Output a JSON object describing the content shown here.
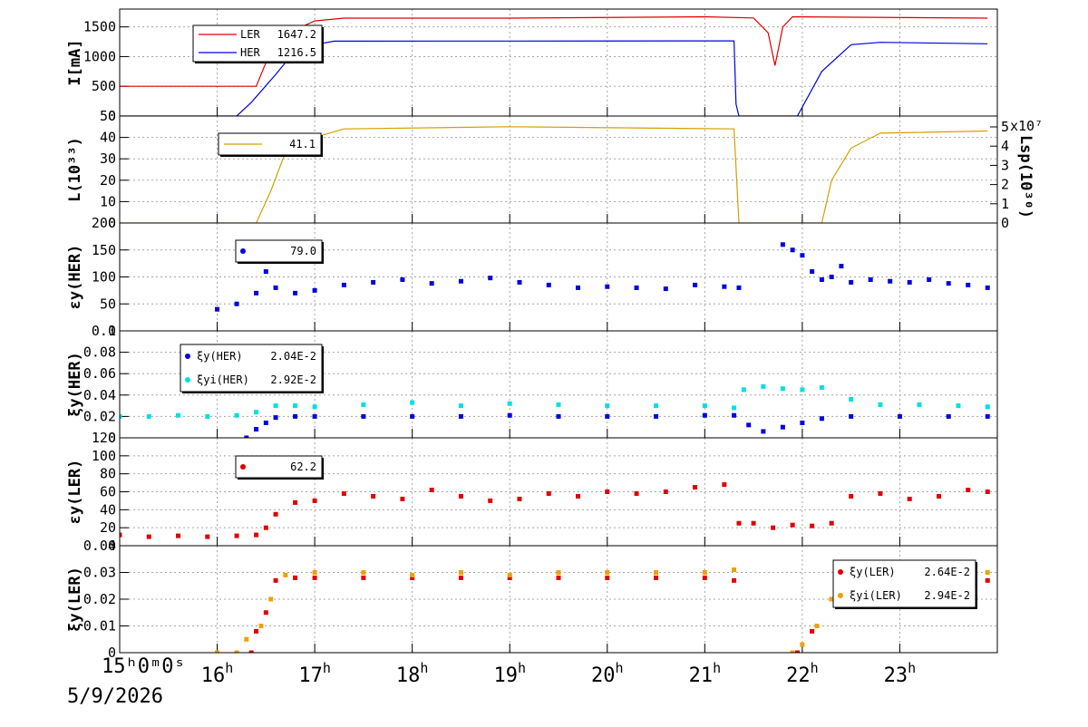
{
  "figure": {
    "time_label": "15ʰ0ᵐ0ˢ",
    "date_label": "5/9/2026"
  },
  "chart_data": [
    {
      "type": "line",
      "id": "current",
      "ylabel": "I[mA]",
      "ylim": [
        0,
        1800
      ],
      "yticks": [
        0,
        500,
        1000,
        1500
      ],
      "legend": [
        {
          "name": "LER",
          "value": "1647.2",
          "color": "#e00000"
        },
        {
          "name": "HER",
          "value": "1216.5",
          "color": "#0000e0"
        }
      ],
      "series": [
        {
          "name": "LER",
          "color": "#e00000",
          "x": [
            15.0,
            16.4,
            16.55,
            16.8,
            17.0,
            17.3,
            19.0,
            21.0,
            21.5,
            21.65,
            21.72,
            21.8,
            21.9,
            23.9
          ],
          "y": [
            500,
            500,
            1100,
            1450,
            1600,
            1647,
            1647,
            1670,
            1650,
            1400,
            850,
            1500,
            1670,
            1647
          ]
        },
        {
          "name": "HER",
          "color": "#0000e0",
          "x": [
            15.0,
            16.2,
            16.35,
            16.6,
            16.8,
            17.0,
            17.2,
            19.0,
            21.3,
            21.32,
            21.35,
            21.95,
            22.2,
            22.5,
            22.8,
            23.9
          ],
          "y": [
            0,
            0,
            230,
            700,
            1100,
            1200,
            1260,
            1262,
            1265,
            200,
            0,
            0,
            750,
            1200,
            1240,
            1216
          ]
        }
      ]
    },
    {
      "type": "line",
      "id": "luminosity",
      "ylabel": "L(10³³)",
      "y2label": "Lsp(10³⁰)",
      "ylim": [
        0,
        50
      ],
      "yticks": [
        0,
        10,
        20,
        30,
        40,
        50
      ],
      "y2ticks": [
        0,
        1,
        2,
        3,
        4,
        5
      ],
      "y2_exponent": "x10⁷",
      "legend": [
        {
          "name": "",
          "value": "41.1",
          "color": "#d4a000"
        }
      ],
      "series": [
        {
          "name": "L",
          "color": "#d4a000",
          "x": [
            15.0,
            16.4,
            16.55,
            16.7,
            17.0,
            17.3,
            19.0,
            21.3,
            21.35,
            22.2,
            22.3,
            22.5,
            22.8,
            23.9
          ],
          "y": [
            0,
            0,
            15,
            33,
            40,
            44,
            45,
            44,
            0,
            0,
            20,
            35,
            42,
            43
          ]
        }
      ]
    },
    {
      "type": "scatter",
      "id": "sigma-her",
      "ylabel": "εy(HER)",
      "ylim": [
        0,
        200
      ],
      "yticks": [
        0,
        50,
        100,
        150,
        200
      ],
      "legend": [
        {
          "name": "",
          "value": "79.0",
          "color": "#0000e0"
        }
      ],
      "series": [
        {
          "name": "HER",
          "color": "#0000e0",
          "x": [
            16.0,
            16.2,
            16.4,
            16.5,
            16.6,
            16.8,
            17.0,
            17.3,
            17.6,
            17.9,
            18.2,
            18.5,
            18.8,
            19.1,
            19.4,
            19.7,
            20.0,
            20.3,
            20.6,
            20.9,
            21.2,
            21.35,
            21.8,
            21.9,
            22.0,
            22.1,
            22.2,
            22.3,
            22.4,
            22.5,
            22.7,
            22.9,
            23.1,
            23.3,
            23.5,
            23.7,
            23.9
          ],
          "y": [
            40,
            50,
            70,
            110,
            80,
            70,
            75,
            85,
            90,
            95,
            88,
            92,
            98,
            90,
            85,
            80,
            82,
            80,
            78,
            85,
            82,
            80,
            160,
            150,
            140,
            110,
            95,
            100,
            120,
            90,
            95,
            92,
            90,
            95,
            88,
            85,
            80
          ]
        }
      ]
    },
    {
      "type": "scatter",
      "id": "xi-her",
      "ylabel": "ξy(HER)",
      "ylim": [
        0,
        0.1
      ],
      "yticks": [
        0,
        0.02,
        0.04,
        0.06,
        0.08,
        0.1
      ],
      "legend": [
        {
          "name": "ξy(HER)",
          "value": "2.04E-2",
          "color": "#0000e0"
        },
        {
          "name": "ξyi(HER)",
          "value": "2.92E-2",
          "color": "#00e0e0"
        }
      ],
      "series": [
        {
          "name": "ξy(HER)",
          "color": "#0000e0",
          "x": [
            16.3,
            16.4,
            16.5,
            16.6,
            16.8,
            17.0,
            17.5,
            18.0,
            18.5,
            19.0,
            19.5,
            20.0,
            20.5,
            21.0,
            21.3,
            21.45,
            21.6,
            21.8,
            22.0,
            22.2,
            22.5,
            23.0,
            23.5,
            23.9
          ],
          "y": [
            0.0,
            0.008,
            0.014,
            0.019,
            0.02,
            0.02,
            0.02,
            0.02,
            0.02,
            0.021,
            0.02,
            0.02,
            0.02,
            0.021,
            0.021,
            0.012,
            0.006,
            0.01,
            0.014,
            0.018,
            0.02,
            0.02,
            0.02,
            0.02
          ]
        },
        {
          "name": "ξyi(HER)",
          "color": "#00e0e0",
          "x": [
            15.0,
            15.3,
            15.6,
            15.9,
            16.2,
            16.4,
            16.6,
            16.8,
            17.0,
            17.5,
            18.0,
            18.5,
            19.0,
            19.5,
            20.0,
            20.5,
            21.0,
            21.3,
            21.4,
            21.6,
            21.8,
            22.0,
            22.2,
            22.5,
            22.8,
            23.2,
            23.6,
            23.9
          ],
          "y": [
            0.02,
            0.02,
            0.021,
            0.02,
            0.021,
            0.024,
            0.03,
            0.03,
            0.029,
            0.031,
            0.033,
            0.03,
            0.032,
            0.031,
            0.03,
            0.03,
            0.03,
            0.028,
            0.045,
            0.048,
            0.046,
            0.045,
            0.047,
            0.036,
            0.031,
            0.031,
            0.03,
            0.029
          ]
        }
      ]
    },
    {
      "type": "scatter",
      "id": "sigma-ler",
      "ylabel": "εy(LER)",
      "ylim": [
        0,
        120
      ],
      "yticks": [
        0,
        20,
        40,
        60,
        80,
        100,
        120
      ],
      "legend": [
        {
          "name": "",
          "value": "62.2",
          "color": "#e00000"
        }
      ],
      "series": [
        {
          "name": "LER",
          "color": "#e00000",
          "x": [
            15.0,
            15.3,
            15.6,
            15.9,
            16.2,
            16.4,
            16.5,
            16.6,
            16.8,
            17.0,
            17.3,
            17.6,
            17.9,
            18.2,
            18.5,
            18.8,
            19.1,
            19.4,
            19.7,
            20.0,
            20.3,
            20.6,
            20.9,
            21.2,
            21.35,
            21.5,
            21.7,
            21.9,
            22.1,
            22.3,
            22.5,
            22.8,
            23.1,
            23.4,
            23.7,
            23.9
          ],
          "y": [
            12,
            10,
            11,
            10,
            11,
            12,
            20,
            35,
            48,
            50,
            58,
            55,
            52,
            62,
            55,
            50,
            52,
            58,
            55,
            60,
            58,
            60,
            65,
            68,
            25,
            25,
            20,
            23,
            22,
            25,
            55,
            58,
            52,
            55,
            62,
            60
          ]
        }
      ]
    },
    {
      "type": "scatter",
      "id": "xi-ler",
      "ylabel": "ξy(LER)",
      "ylim": [
        0,
        0.04
      ],
      "yticks": [
        0,
        0.01,
        0.02,
        0.03,
        0.04
      ],
      "legend": [
        {
          "name": "ξy(LER)",
          "value": "2.64E-2",
          "color": "#e00000"
        },
        {
          "name": "ξyi(LER)",
          "value": "2.94E-2",
          "color": "#f0a000"
        }
      ],
      "series": [
        {
          "name": "ξy(LER)",
          "color": "#e00000",
          "x": [
            16.35,
            16.4,
            16.5,
            16.6,
            16.8,
            17.0,
            17.5,
            18.0,
            18.5,
            19.0,
            19.5,
            20.0,
            20.5,
            21.0,
            21.3,
            21.95,
            22.1,
            22.3,
            22.5,
            23.0,
            23.5,
            23.9
          ],
          "y": [
            0.0,
            0.008,
            0.015,
            0.027,
            0.028,
            0.028,
            0.028,
            0.028,
            0.028,
            0.028,
            0.028,
            0.028,
            0.028,
            0.028,
            0.027,
            0.0,
            0.008,
            0.02,
            0.026,
            0.027,
            0.027,
            0.027
          ]
        },
        {
          "name": "ξyi(LER)",
          "color": "#f0a000",
          "x": [
            16.0,
            16.2,
            16.3,
            16.45,
            16.55,
            16.7,
            17.0,
            17.5,
            18.0,
            18.5,
            19.0,
            19.5,
            20.0,
            20.5,
            21.0,
            21.3,
            21.9,
            22.0,
            22.15,
            22.3,
            22.5,
            22.8,
            23.2,
            23.6,
            23.9
          ],
          "y": [
            0.0,
            0.0,
            0.005,
            0.01,
            0.02,
            0.029,
            0.03,
            0.03,
            0.029,
            0.03,
            0.029,
            0.03,
            0.03,
            0.03,
            0.03,
            0.031,
            0.0,
            0.003,
            0.01,
            0.02,
            0.026,
            0.028,
            0.029,
            0.029,
            0.03
          ]
        }
      ]
    }
  ],
  "x_axis": {
    "range": [
      15.0,
      24.0
    ],
    "ticks": [
      {
        "h": 16,
        "label": "16"
      },
      {
        "h": 17,
        "label": "17"
      },
      {
        "h": 18,
        "label": "18"
      },
      {
        "h": 19,
        "label": "19"
      },
      {
        "h": 20,
        "label": "20"
      },
      {
        "h": 21,
        "label": "21"
      },
      {
        "h": 22,
        "label": "22"
      },
      {
        "h": 23,
        "label": "23"
      }
    ],
    "tick_superscript": "h"
  }
}
